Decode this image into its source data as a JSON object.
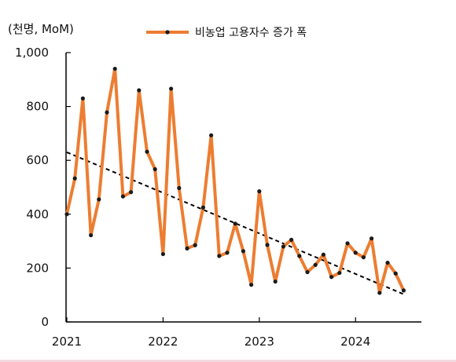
{
  "chart_data": {
    "type": "line",
    "unit_label": "(천명, MoM)",
    "ylim": [
      0,
      1000
    ],
    "yticks": [
      "0",
      "200",
      "400",
      "600",
      "800",
      "1,000"
    ],
    "xtick_labels": [
      "2021",
      "2022",
      "2023",
      "2024"
    ],
    "x_start": "2021-01",
    "series": [
      {
        "name": "비농업 고용자수 증가 폭",
        "color": "#ed7d31",
        "marker_color": "#1a1a1a",
        "values": [
          400,
          533,
          830,
          322,
          455,
          778,
          940,
          466,
          482,
          860,
          632,
          567,
          252,
          866,
          497,
          273,
          285,
          425,
          693,
          245,
          257,
          365,
          263,
          138,
          485,
          286,
          150,
          280,
          305,
          245,
          185,
          212,
          250,
          167,
          182,
          292,
          257,
          240,
          310,
          108,
          220,
          180,
          117
        ]
      }
    ],
    "trendline": {
      "style": "dashed",
      "color": "#000000",
      "from": 630,
      "to": 103
    },
    "grid": false,
    "legend_position": "top"
  }
}
